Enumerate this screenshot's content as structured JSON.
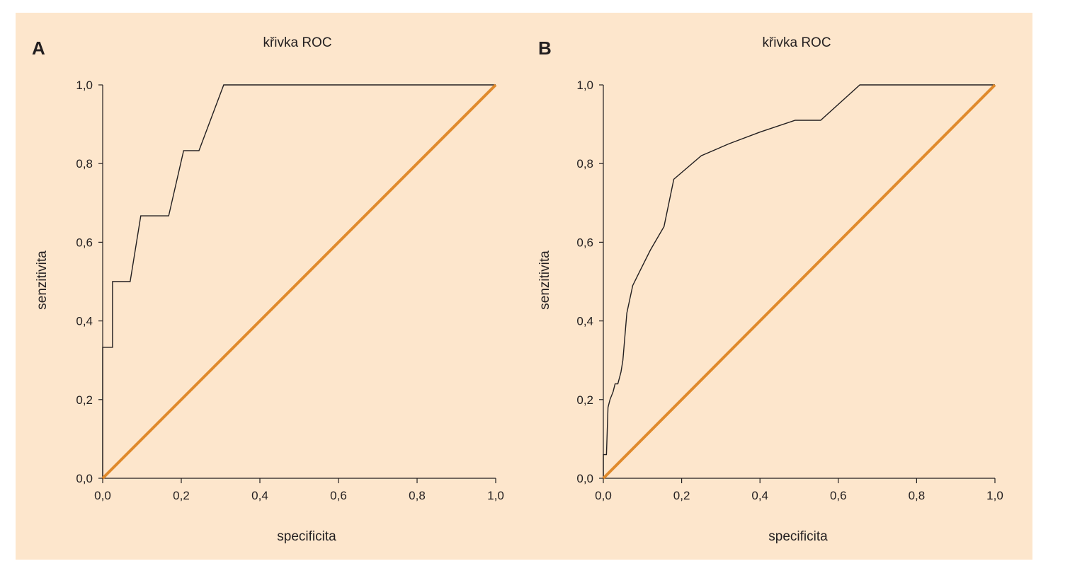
{
  "colors": {
    "background": "#fde6cc",
    "roc_line": "#231f20",
    "reference_line": "#e08a2c"
  },
  "chart_data": [
    {
      "panel": "A",
      "type": "line",
      "title": "křivka ROC",
      "xlabel": "specificita",
      "ylabel": "senzitivita",
      "xlim": [
        0,
        1
      ],
      "ylim": [
        0,
        1
      ],
      "xticks": [
        "0,0",
        "0,2",
        "0,4",
        "0,6",
        "0,8",
        "1,0"
      ],
      "yticks": [
        "0,0",
        "0,2",
        "0,4",
        "0,6",
        "0,8",
        "1,0"
      ],
      "grid": false,
      "series": [
        {
          "role": "roc",
          "x": [
            0.0,
            0.0,
            0.025,
            0.025,
            0.07,
            0.07,
            0.097,
            0.097,
            0.168,
            0.168,
            0.206,
            0.206,
            0.245,
            0.308,
            1.0
          ],
          "y": [
            0.0,
            0.333,
            0.333,
            0.5,
            0.5,
            0.5,
            0.667,
            0.667,
            0.667,
            0.667,
            0.833,
            0.833,
            0.833,
            1.0,
            1.0
          ]
        },
        {
          "role": "reference",
          "x": [
            0,
            1
          ],
          "y": [
            0,
            1
          ]
        }
      ]
    },
    {
      "panel": "B",
      "type": "line",
      "title": "křivka ROC",
      "xlabel": "specificita",
      "ylabel": "senzitivita",
      "xlim": [
        0,
        1
      ],
      "ylim": [
        0,
        1
      ],
      "xticks": [
        "0,0",
        "0,2",
        "0,4",
        "0,6",
        "0,8",
        "1,0"
      ],
      "yticks": [
        "0,0",
        "0,2",
        "0,4",
        "0,6",
        "0,8",
        "1,0"
      ],
      "grid": false,
      "series": [
        {
          "role": "roc",
          "x": [
            0.0,
            0.0,
            0.003,
            0.008,
            0.01,
            0.012,
            0.017,
            0.025,
            0.03,
            0.037,
            0.045,
            0.05,
            0.06,
            0.075,
            0.095,
            0.12,
            0.155,
            0.18,
            0.25,
            0.32,
            0.4,
            0.49,
            0.555,
            0.655,
            1.0
          ],
          "y": [
            0.0,
            0.06,
            0.06,
            0.06,
            0.12,
            0.18,
            0.2,
            0.22,
            0.24,
            0.24,
            0.27,
            0.3,
            0.42,
            0.49,
            0.53,
            0.58,
            0.64,
            0.76,
            0.82,
            0.85,
            0.88,
            0.91,
            0.91,
            1.0,
            1.0
          ]
        },
        {
          "role": "reference",
          "x": [
            0,
            1
          ],
          "y": [
            0,
            1
          ]
        }
      ]
    }
  ]
}
